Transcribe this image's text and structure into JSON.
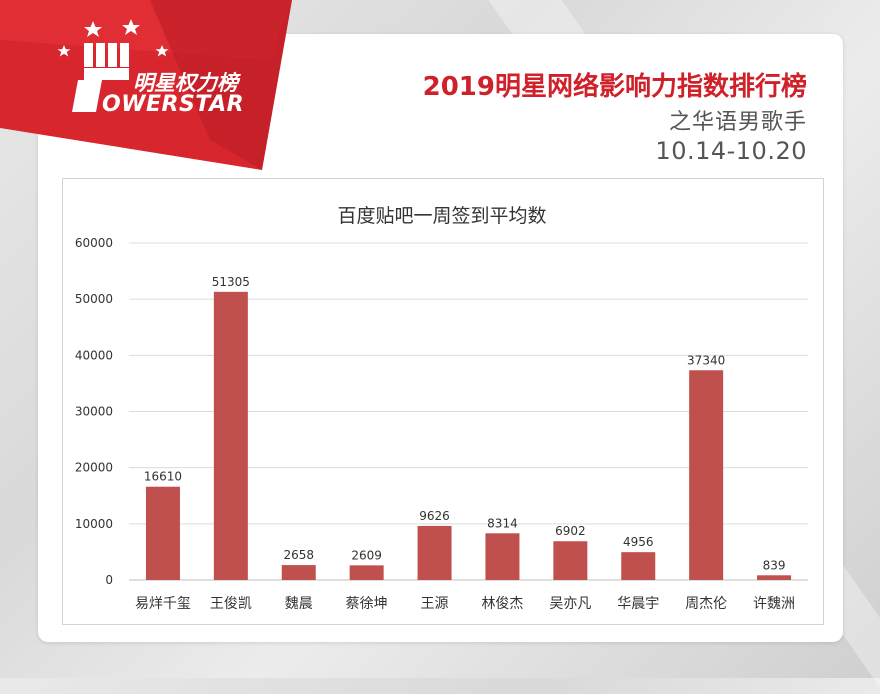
{
  "brand": {
    "logo_cn": "明星权力榜",
    "logo_en": "OWERSTAR"
  },
  "header": {
    "title": "2019明星网络影响力指数排行榜",
    "subtitle": "之华语男歌手",
    "date_range": "10.14-10.20"
  },
  "colors": {
    "bar": "#c0504d",
    "title_red": "#d0202a",
    "ribbon_red": "#d7262e"
  },
  "chart_data": {
    "type": "bar",
    "title": "百度贴吧一周签到平均数",
    "categories": [
      "易烊千玺",
      "王俊凯",
      "魏晨",
      "蔡徐坤",
      "王源",
      "林俊杰",
      "吴亦凡",
      "华晨宇",
      "周杰伦",
      "许魏洲"
    ],
    "values": [
      16610,
      51305,
      2658,
      2609,
      9626,
      8314,
      6902,
      4956,
      37340,
      839
    ],
    "ylim": [
      0,
      60000
    ],
    "yticks": [
      0,
      10000,
      20000,
      30000,
      40000,
      50000,
      60000
    ],
    "grid": true,
    "legend": "none",
    "xlabel": "",
    "ylabel": ""
  }
}
